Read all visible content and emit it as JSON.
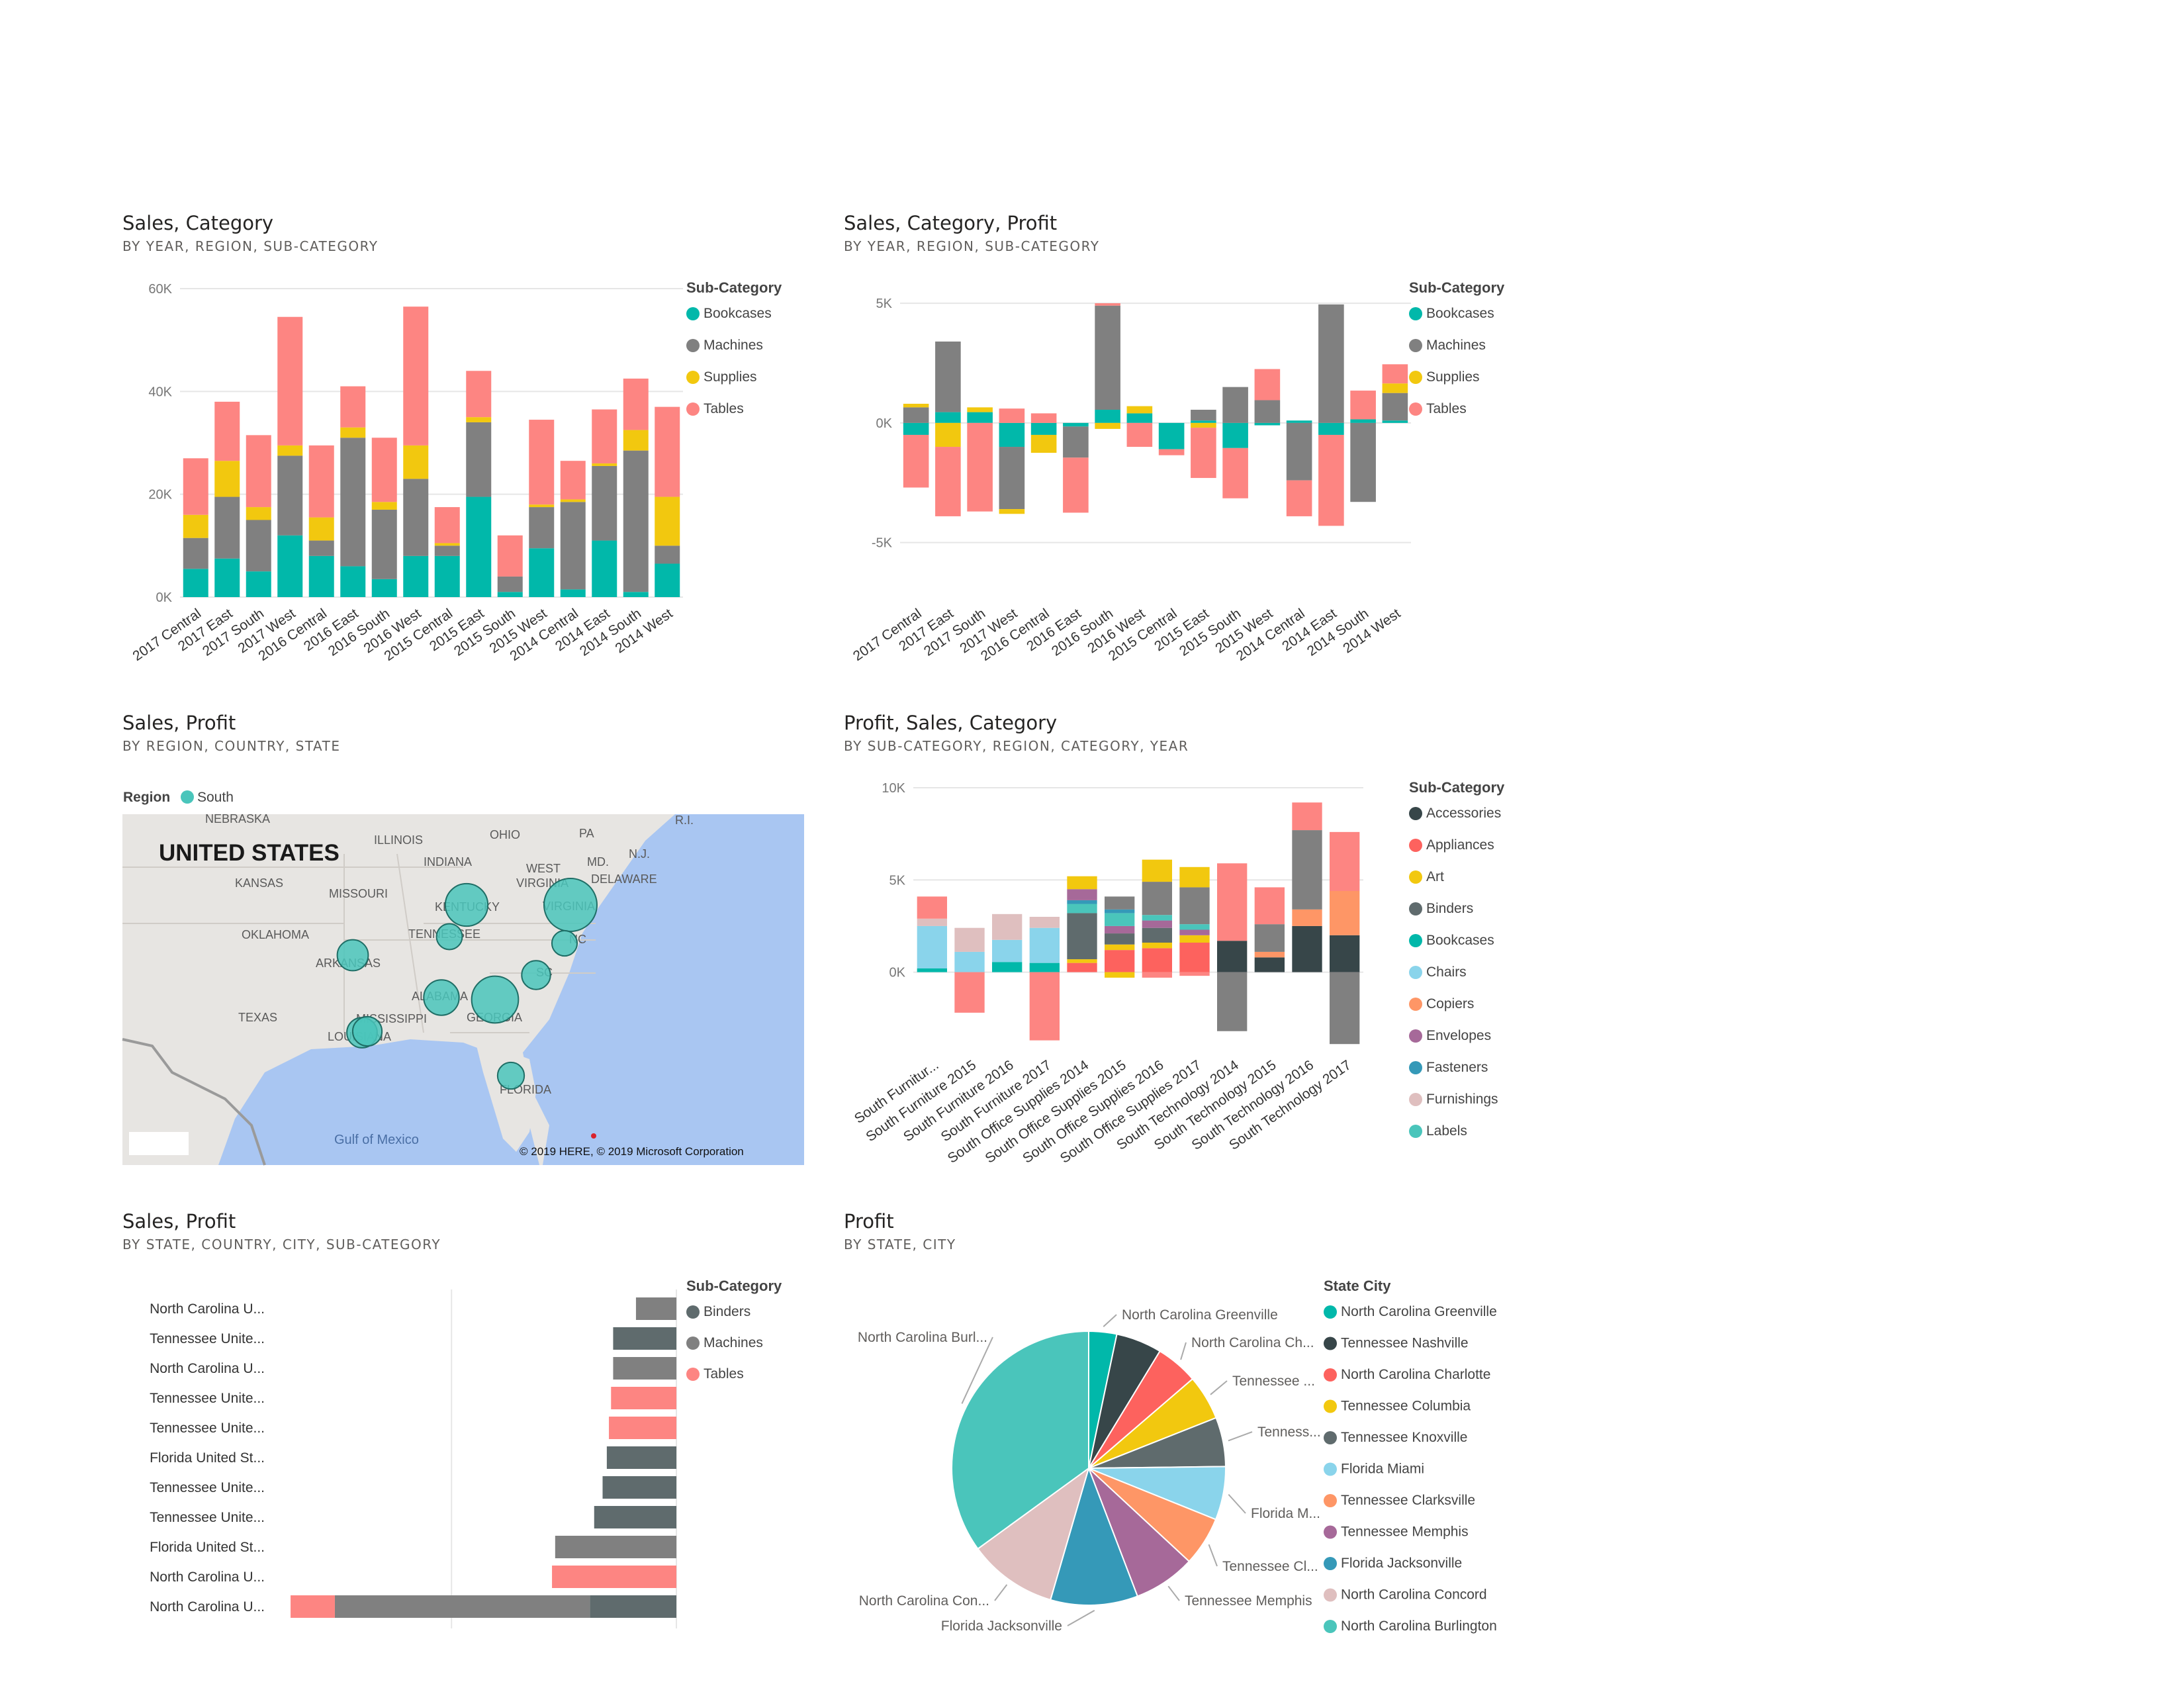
{
  "page": {
    "background": "#ffffff"
  },
  "colors": {
    "Bookcases": "#01b8aa",
    "Machines": "#808080",
    "Supplies": "#f2c80f",
    "Tables": "#fd8582",
    "Accessories": "#374649",
    "Appliances": "#fd625e",
    "Art": "#f2c80f",
    "Binders": "#5f6b6d",
    "Chairs": "#8ad4eb",
    "Copiers": "#fe9666",
    "Envelopes": "#a66999",
    "Fasteners": "#3599b8",
    "Furnishings": "#dfbfbf",
    "Labels": "#4ac5bb"
  },
  "visuals": [
    {
      "title": "Sales, Category",
      "subtitle": "BY YEAR, REGION, SUB-CATEGORY",
      "legend": {
        "title": "Sub-Category",
        "items": [
          "Bookcases",
          "Machines",
          "Supplies",
          "Tables"
        ],
        "placement": "right"
      },
      "chart_data": {
        "type": "bar",
        "stacked": true,
        "categories": [
          "2017 Central",
          "2017 East",
          "2017 South",
          "2017 West",
          "2016 Central",
          "2016 East",
          "2016 South",
          "2016 West",
          "2015 Central",
          "2015 East",
          "2015 South",
          "2015 West",
          "2014 Central",
          "2014 East",
          "2014 South",
          "2014 West"
        ],
        "series": [
          {
            "name": "Bookcases",
            "values": [
              5500,
              7500,
              5000,
              12000,
              8000,
              6000,
              3500,
              8000,
              8000,
              19500,
              1000,
              9500,
              1500,
              11000,
              1000,
              6500
            ]
          },
          {
            "name": "Machines",
            "values": [
              6000,
              12000,
              10000,
              15500,
              3000,
              25000,
              13500,
              15000,
              2000,
              14500,
              3000,
              8000,
              17000,
              14500,
              27500,
              3500
            ]
          },
          {
            "name": "Supplies",
            "values": [
              4500,
              7000,
              2500,
              2000,
              4500,
              2000,
              1500,
              6500,
              500,
              1000,
              0,
              500,
              500,
              500,
              4000,
              9500
            ]
          },
          {
            "name": "Tables",
            "values": [
              11000,
              11500,
              14000,
              25000,
              14000,
              8000,
              12500,
              27000,
              7000,
              9000,
              8000,
              16500,
              7500,
              10500,
              10000,
              17500
            ]
          }
        ],
        "yticks": [
          "0K",
          "20K",
          "40K",
          "60K"
        ],
        "ylim": [
          0,
          60000
        ],
        "grid": true
      }
    },
    {
      "title": "Sales, Category, Profit",
      "subtitle": "BY YEAR, REGION, SUB-CATEGORY",
      "legend": {
        "title": "Sub-Category",
        "items": [
          "Bookcases",
          "Machines",
          "Supplies",
          "Tables"
        ],
        "placement": "right"
      },
      "chart_data": {
        "type": "bar",
        "stacked": true,
        "diverging": true,
        "categories": [
          "2017 Central",
          "2017 East",
          "2017 South",
          "2017 West",
          "2016 Central",
          "2016 East",
          "2016 South",
          "2016 West",
          "2015 Central",
          "2015 East",
          "2015 South",
          "2015 West",
          "2014 Central",
          "2014 East",
          "2014 South",
          "2014 West"
        ],
        "series": [
          {
            "name": "Bookcases",
            "values": [
              -500,
              450,
              450,
              -1000,
              -500,
              -150,
              550,
              400,
              -1100,
              100,
              -1050,
              -100,
              100,
              -500,
              150,
              100
            ]
          },
          {
            "name": "Machines",
            "values": [
              650,
              2950,
              0,
              -2600,
              0,
              -1300,
              4350,
              0,
              0,
              450,
              1500,
              950,
              -2400,
              4950,
              -3300,
              1150
            ]
          },
          {
            "name": "Supplies",
            "values": [
              150,
              -1000,
              200,
              -200,
              -750,
              0,
              -250,
              300,
              0,
              -200,
              0,
              0,
              0,
              0,
              0,
              400
            ]
          },
          {
            "name": "Tables",
            "values": [
              -2200,
              -2900,
              -3700,
              600,
              400,
              -2300,
              100,
              -1000,
              -250,
              -2100,
              -2100,
              1300,
              -1500,
              -3800,
              1200,
              800
            ]
          }
        ],
        "yticks": [
          "-5K",
          "0K",
          "5K"
        ],
        "ylim": [
          -7000,
          5500
        ],
        "grid": true
      }
    },
    {
      "title": "Sales, Profit",
      "subtitle": "BY REGION, COUNTRY, STATE",
      "legend": {
        "title": "Region",
        "items": [
          "South"
        ],
        "placement": "top"
      },
      "map": {
        "big_label": "UNITED STATES",
        "labels": [
          "NEBRASKA",
          "ILLINOIS",
          "OHIO",
          "PA",
          "R.I.",
          "INDIANA",
          "WEST",
          "VIRGINIA",
          "MD.",
          "N.J.",
          "KANSAS",
          "MISSOURI",
          "KENTUCKY",
          "VIRGINIA",
          "DELAWARE",
          "OKLAHOMA",
          "TENNESSEE",
          "NC",
          "ARKANSAS",
          "SC",
          "TEXAS",
          "MISSISSIPPI",
          "ALABAMA",
          "GEORGIA",
          "LOUISIANA",
          "FLORIDA"
        ],
        "water_label": "Gulf of Mexico",
        "copyright": "© 2019 HERE, © 2019 Microsoft Corporation",
        "bubble_color": "#4ac5bb",
        "bubbles": [
          {
            "state": "Virginia",
            "sales": 70637
          },
          {
            "state": "Kentucky",
            "sales": 36592
          },
          {
            "state": "Tennessee",
            "sales": 5000
          },
          {
            "state": "North Carolina",
            "sales": 4500
          },
          {
            "state": "Arkansas",
            "sales": 11678
          },
          {
            "state": "South Carolina",
            "sales": 8482
          },
          {
            "state": "Mississippi",
            "sales": 10771
          },
          {
            "state": "Alabama",
            "sales": 19511
          },
          {
            "state": "Georgia",
            "sales": 49096
          },
          {
            "state": "Louisiana",
            "sales": 9217
          },
          {
            "state": "Florida",
            "sales": 6000
          }
        ]
      }
    },
    {
      "title": "Profit, Sales, Category",
      "subtitle": "BY SUB-CATEGORY, REGION, CATEGORY, YEAR",
      "legend": {
        "title": "Sub-Category",
        "items": [
          "Accessories",
          "Appliances",
          "Art",
          "Binders",
          "Bookcases",
          "Chairs",
          "Copiers",
          "Envelopes",
          "Fasteners",
          "Furnishings",
          "Labels"
        ],
        "placement": "right"
      },
      "chart_data": {
        "type": "bar",
        "stacked": true,
        "diverging": true,
        "categories": [
          "South Furnitur...",
          "South Furniture 2015",
          "South Furniture 2016",
          "South Furniture 2017",
          "South Office Supplies 2014",
          "South Office Supplies 2015",
          "South Office Supplies 2016",
          "South Office Supplies 2017",
          "South Technology 2014",
          "South Technology 2015",
          "South Technology 2016",
          "South Technology 2017"
        ],
        "stacks": [
          [
            [
              "Bookcases",
              200
            ],
            [
              "Chairs",
              2300
            ],
            [
              "Furnishings",
              400
            ],
            [
              "Tables",
              1200
            ]
          ],
          [
            [
              "Chairs",
              1100
            ],
            [
              "Furnishings",
              1300
            ],
            [
              "Tables",
              -2200
            ]
          ],
          [
            [
              "Bookcases",
              550
            ],
            [
              "Chairs",
              1200
            ],
            [
              "Furnishings",
              1400
            ]
          ],
          [
            [
              "Bookcases",
              500
            ],
            [
              "Chairs",
              1900
            ],
            [
              "Furnishings",
              600
            ],
            [
              "Tables",
              -3700
            ]
          ],
          [
            [
              "Appliances",
              500
            ],
            [
              "Art",
              200
            ],
            [
              "Binders",
              2500
            ],
            [
              "Labels",
              500
            ],
            [
              "Fasteners",
              200
            ],
            [
              "Envelopes",
              600
            ],
            [
              "Supplies",
              700
            ]
          ],
          [
            [
              "Appliances",
              1200
            ],
            [
              "Art",
              300
            ],
            [
              "Binders",
              600
            ],
            [
              "Envelopes",
              400
            ],
            [
              "Labels",
              700
            ],
            [
              "Fasteners",
              200
            ],
            [
              "Machines",
              700
            ],
            [
              "Supplies",
              -300
            ]
          ],
          [
            [
              "Appliances",
              1300
            ],
            [
              "Art",
              300
            ],
            [
              "Binders",
              800
            ],
            [
              "Envelopes",
              400
            ],
            [
              "Labels",
              300
            ],
            [
              "Machines",
              1800
            ],
            [
              "Supplies",
              1200
            ],
            [
              "Tables",
              -300
            ]
          ],
          [
            [
              "Appliances",
              1600
            ],
            [
              "Art",
              400
            ],
            [
              "Envelopes",
              300
            ],
            [
              "Labels",
              300
            ],
            [
              "Machines",
              2000
            ],
            [
              "Supplies",
              1100
            ],
            [
              "Tables",
              -200
            ]
          ],
          [
            [
              "Accessories",
              1700
            ],
            [
              "Tables",
              4200
            ],
            [
              "Machines",
              -3200
            ]
          ],
          [
            [
              "Accessories",
              800
            ],
            [
              "Copiers",
              300
            ],
            [
              "Machines",
              1500
            ],
            [
              "Tables",
              2000
            ]
          ],
          [
            [
              "Accessories",
              2500
            ],
            [
              "Copiers",
              900
            ],
            [
              "Machines",
              4300
            ],
            [
              "Tables",
              1500
            ]
          ],
          [
            [
              "Accessories",
              2000
            ],
            [
              "Copiers",
              2400
            ],
            [
              "Tables",
              3200
            ],
            [
              "Machines",
              -3900
            ]
          ]
        ],
        "yticks": [
          "0K",
          "5K",
          "10K"
        ],
        "ylim": [
          -4000,
          10000
        ],
        "grid": true
      }
    },
    {
      "title": "Sales, Profit",
      "subtitle": "BY STATE, COUNTRY, CITY, SUB-CATEGORY",
      "legend": {
        "title": "Sub-Category",
        "items": [
          "Binders",
          "Machines",
          "Tables"
        ],
        "placement": "right"
      },
      "chart_data": {
        "type": "bar",
        "orientation": "horizontal",
        "stacked": true,
        "categories": [
          "North Carolina U...",
          "Tennessee Unite...",
          "North Carolina U...",
          "Tennessee Unite...",
          "Tennessee Unite...",
          "Florida United St...",
          "Tennessee Unite...",
          "Tennessee Unite...",
          "Florida United St...",
          "North Carolina U...",
          "North Carolina U..."
        ],
        "stacks": [
          [
            [
              "Machines",
              -1150
            ]
          ],
          [
            [
              "Binders",
              -1800
            ]
          ],
          [
            [
              "Machines",
              -1800
            ]
          ],
          [
            [
              "Tables",
              -1860
            ]
          ],
          [
            [
              "Tables",
              -1920
            ]
          ],
          [
            [
              "Binders",
              -1980
            ]
          ],
          [
            [
              "Binders",
              -2100
            ]
          ],
          [
            [
              "Binders",
              -2340
            ]
          ],
          [
            [
              "Machines",
              -3450
            ]
          ],
          [
            [
              "Tables",
              -3540
            ]
          ],
          [
            [
              "Binders",
              -2460
            ],
            [
              "Machines",
              -7260
            ],
            [
              "Tables",
              -1260
            ]
          ]
        ],
        "xlim": [
          -11000,
          0
        ],
        "grid": true
      }
    },
    {
      "title": "Profit",
      "subtitle": "BY STATE, CITY",
      "legend": {
        "title": "State City",
        "items": [
          "North Carolina Greenville",
          "Tennessee Nashville",
          "North Carolina Charlotte",
          "Tennessee Columbia",
          "Tennessee Knoxville",
          "Florida Miami",
          "Tennessee Clarksville",
          "Tennessee Memphis",
          "Florida Jacksonville",
          "North Carolina Concord",
          "North Carolina Burlington"
        ],
        "placement": "right"
      },
      "slice_labels": [
        "North Carolina Greenville",
        "North Carolina Ch...",
        "Tennessee ...",
        "Tenness...",
        "Florida M...",
        "Tennessee Cl...",
        "Tennessee Memphis",
        "Florida Jacksonville",
        "North Carolina Con...",
        "North Carolina Burl..."
      ],
      "chart_data": {
        "type": "pie",
        "categories": [
          "North Carolina Greenville",
          "Tennessee Nashville",
          "North Carolina Charlotte",
          "Tennessee Columbia",
          "Tennessee Knoxville",
          "Florida Miami",
          "Tennessee Clarksville",
          "Tennessee Memphis",
          "Florida Jacksonville",
          "North Carolina Concord",
          "North Carolina Burlington"
        ],
        "values": [
          3.3,
          5.4,
          5.0,
          5.3,
          5.8,
          6.3,
          5.8,
          7.3,
          10.3,
          10.5,
          35.0
        ],
        "colors": [
          "#01b8aa",
          "#374649",
          "#fd625e",
          "#f2c80f",
          "#5f6b6d",
          "#8ad4eb",
          "#fe9666",
          "#a66999",
          "#3599b8",
          "#dfbfbf",
          "#4ac5bb"
        ]
      }
    }
  ]
}
